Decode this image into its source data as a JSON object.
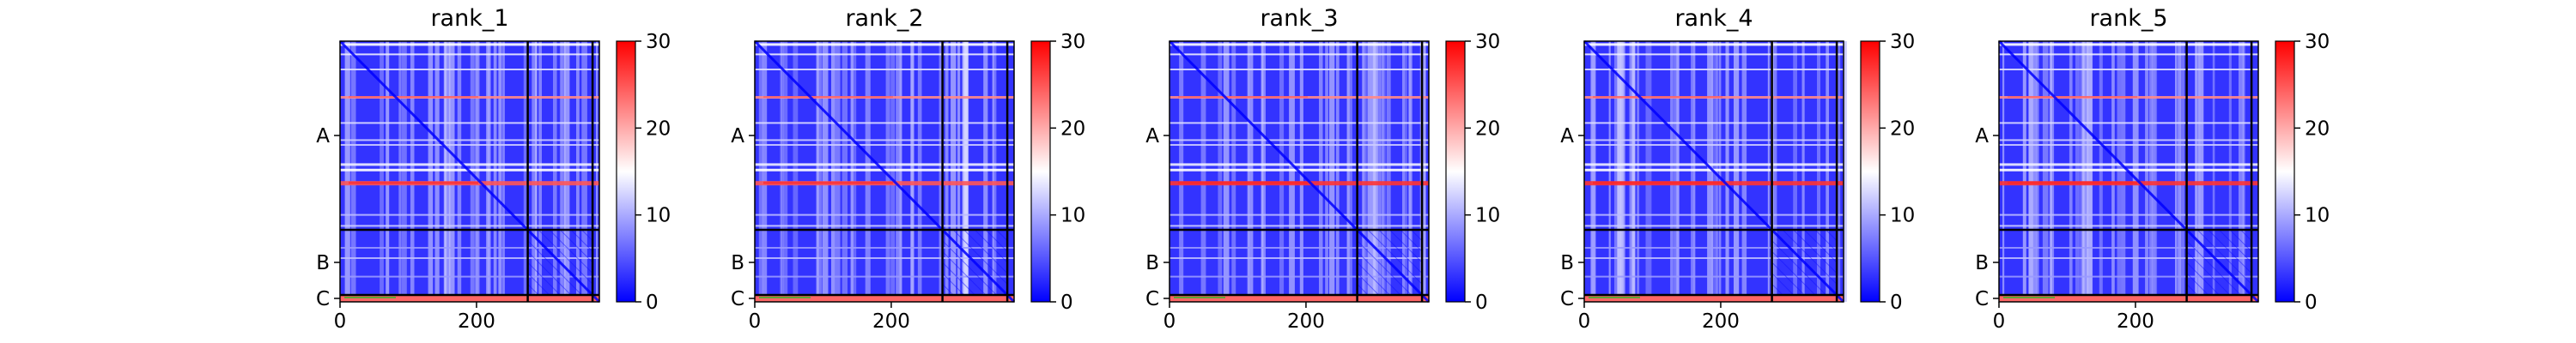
{
  "chart_data": [
    {
      "type": "heatmap",
      "title": "rank_1",
      "x_ticks": [
        0,
        200
      ],
      "y_chain_labels": [
        "A",
        "B",
        "C"
      ],
      "colorbar_ticks": [
        0,
        10,
        20,
        30
      ],
      "colorbar_range": [
        0,
        30
      ],
      "colormap": "bwr",
      "chain_breaks": [
        275,
        370
      ],
      "total_length": 380,
      "grid": false
    },
    {
      "type": "heatmap",
      "title": "rank_2",
      "x_ticks": [
        0,
        200
      ],
      "y_chain_labels": [
        "A",
        "B",
        "C"
      ],
      "colorbar_ticks": [
        0,
        10,
        20,
        30
      ],
      "colorbar_range": [
        0,
        30
      ],
      "colormap": "bwr",
      "chain_breaks": [
        275,
        370
      ],
      "total_length": 380,
      "grid": false
    },
    {
      "type": "heatmap",
      "title": "rank_3",
      "x_ticks": [
        0,
        200
      ],
      "y_chain_labels": [
        "A",
        "B",
        "C"
      ],
      "colorbar_ticks": [
        0,
        10,
        20,
        30
      ],
      "colorbar_range": [
        0,
        30
      ],
      "colormap": "bwr",
      "chain_breaks": [
        275,
        370
      ],
      "total_length": 380,
      "grid": false
    },
    {
      "type": "heatmap",
      "title": "rank_4",
      "x_ticks": [
        0,
        200
      ],
      "y_chain_labels": [
        "A",
        "B",
        "C"
      ],
      "colorbar_ticks": [
        0,
        10,
        20,
        30
      ],
      "colorbar_range": [
        0,
        30
      ],
      "colormap": "bwr",
      "chain_breaks": [
        275,
        370
      ],
      "total_length": 380,
      "grid": false
    },
    {
      "type": "heatmap",
      "title": "rank_5",
      "x_ticks": [
        0,
        200
      ],
      "y_chain_labels": [
        "A",
        "B",
        "C"
      ],
      "colorbar_ticks": [
        0,
        10,
        20,
        30
      ],
      "colorbar_range": [
        0,
        30
      ],
      "colormap": "bwr",
      "chain_breaks": [
        275,
        370
      ],
      "total_length": 380,
      "grid": false
    }
  ],
  "colors": {
    "low": "#0000ff",
    "mid": "#ffffff",
    "high": "#ff0000"
  }
}
